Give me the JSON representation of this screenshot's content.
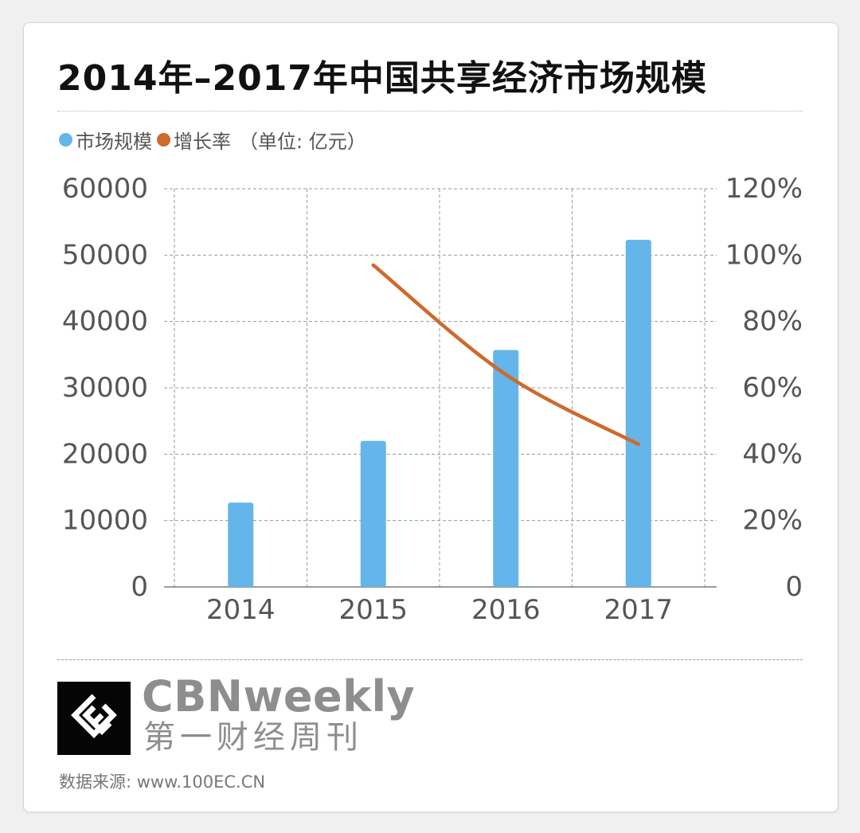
{
  "title": "2014年–2017年中国共享经济市场规模",
  "legend": {
    "market_label": "市场规模",
    "growth_label": "增长率",
    "unit_note": "（单位: 亿元）"
  },
  "colors": {
    "bar": "#64b5e9",
    "line": "#cd6a2c",
    "grid": "#9a9a9a",
    "axis_text": "#555555"
  },
  "chart_data": {
    "type": "bar",
    "title": "2014年–2017年中国共享经济市场规模",
    "categories": [
      "2014",
      "2015",
      "2016",
      "2017"
    ],
    "series": [
      {
        "name": "市场规模",
        "type": "bar",
        "axis": "left",
        "values": [
          12700,
          22000,
          35700,
          52300
        ]
      },
      {
        "name": "增长率",
        "type": "line",
        "axis": "right",
        "values": [
          null,
          97,
          64,
          43
        ]
      }
    ],
    "left_axis": {
      "ylim": [
        0,
        60000
      ],
      "ticks": [
        "0",
        "10000",
        "20000",
        "30000",
        "40000",
        "50000",
        "60000"
      ]
    },
    "right_axis": {
      "ylim": [
        0,
        120
      ],
      "ticks": [
        "0",
        "20%",
        "40%",
        "60%",
        "80%",
        "100%",
        "120%"
      ]
    },
    "grid": true,
    "legend_position": "top-left"
  },
  "footer": {
    "brand": "CBNweekly",
    "brand_cn": "第一财经周刊",
    "source": "数据来源: www.100EC.CN"
  }
}
